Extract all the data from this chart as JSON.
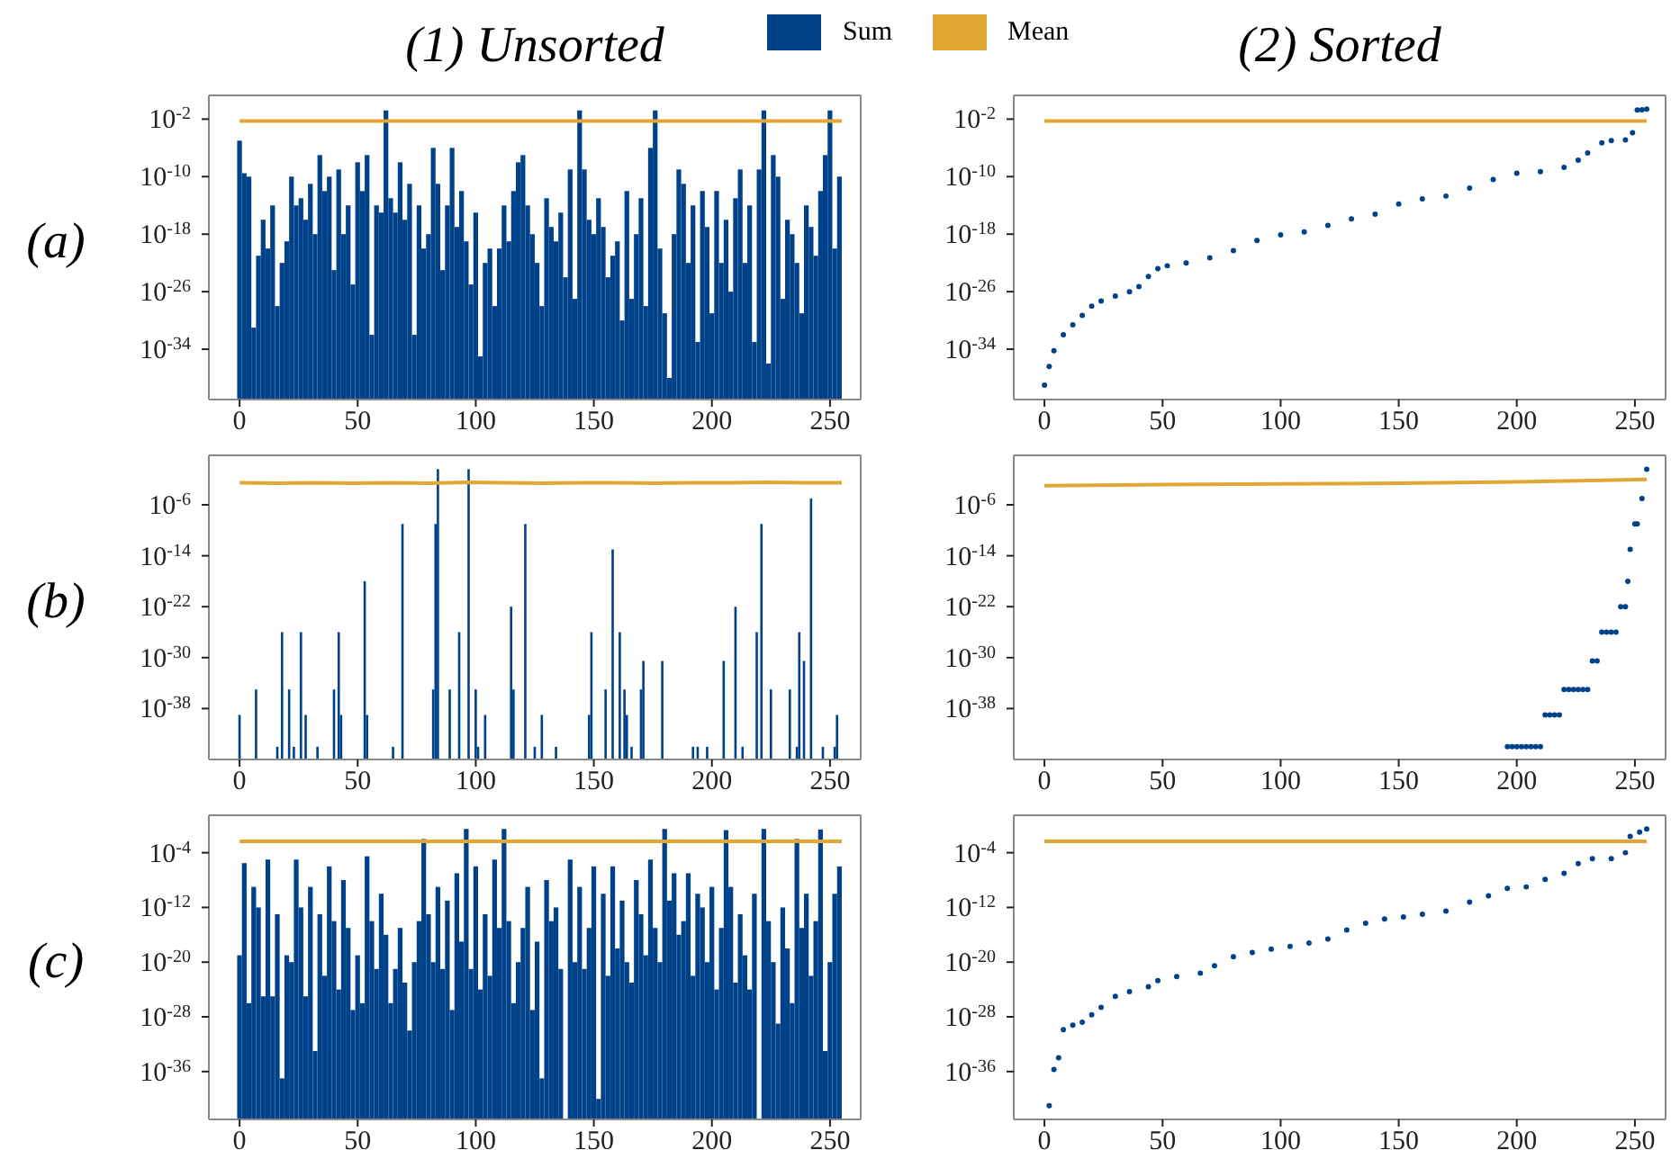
{
  "chart_data": [
    {
      "type": "bar",
      "title": "(1) Unsorted",
      "ylabel": "(a)",
      "legend": "top",
      "log": "y",
      "xlim": [
        -13,
        263
      ],
      "xticks": [
        0,
        50,
        100,
        150,
        200,
        250
      ],
      "ylim": [
        1e-41,
        20
      ],
      "yticks": [
        {
          "value": 0.01,
          "label": "10$^{-2}$"
        },
        {
          "value": 1e-10,
          "label": "10$^{-10}$"
        },
        {
          "value": 1e-18,
          "label": "10$^{-18}$"
        },
        {
          "value": 1e-26,
          "label": "10$^{-26}$"
        },
        {
          "value": 1e-34,
          "label": "10$^{-34}$"
        }
      ],
      "x": [
        0,
        2,
        4,
        6,
        8,
        10,
        12,
        14,
        16,
        18,
        20,
        22,
        24,
        26,
        28,
        30,
        32,
        34,
        36,
        38,
        40,
        42,
        44,
        46,
        48,
        50,
        52,
        54,
        56,
        58,
        60,
        62,
        64,
        66,
        68,
        70,
        72,
        74,
        76,
        78,
        80,
        82,
        84,
        86,
        88,
        90,
        92,
        94,
        96,
        98,
        100,
        102,
        104,
        106,
        108,
        110,
        112,
        114,
        116,
        118,
        120,
        122,
        124,
        126,
        128,
        130,
        132,
        134,
        136,
        138,
        140,
        142,
        144,
        146,
        148,
        150,
        152,
        154,
        156,
        158,
        160,
        162,
        164,
        166,
        168,
        170,
        172,
        174,
        176,
        178,
        180,
        182,
        184,
        186,
        188,
        190,
        192,
        194,
        196,
        198,
        200,
        202,
        204,
        206,
        208,
        210,
        212,
        214,
        216,
        218,
        220,
        222,
        224,
        226,
        228,
        230,
        232,
        234,
        236,
        238,
        240,
        242,
        244,
        246,
        248,
        250,
        252,
        254
      ],
      "series": [
        {
          "name": "Sum",
          "color": "#00428a",
          "values": [
            1e-05,
            3e-10,
            1e-10,
            1e-31,
            1e-21,
            1e-16,
            1e-20,
            1e-14,
            1e-28,
            1e-22,
            1e-19,
            1e-10,
            1e-14,
            1e-13,
            1e-16,
            1e-11,
            1e-18,
            1e-07,
            1e-12,
            1e-10,
            1e-23,
            1e-09,
            1e-18,
            1e-14,
            1e-25,
            1e-08,
            1e-12,
            1e-07,
            1e-32,
            1e-14,
            1e-15,
            0.16,
            1e-13,
            1e-15,
            1e-08,
            1e-16,
            1e-11,
            1e-32,
            1e-14,
            1e-20,
            1e-18,
            1e-06,
            1e-11,
            1e-23,
            1e-14,
            1e-06,
            1e-17,
            1e-12,
            1e-19,
            1e-25,
            1e-15,
            1e-35,
            1e-22,
            1e-20,
            1e-28,
            1e-20,
            1e-14,
            1e-19,
            1e-12,
            1e-08,
            1e-07,
            1e-14,
            1e-18,
            1e-22,
            1e-28,
            1e-13,
            1e-17,
            1e-19,
            1e-15,
            1e-24,
            1e-09,
            1e-27,
            0.16,
            1e-09,
            1e-16,
            1e-18,
            1e-13,
            1e-17,
            1e-24,
            1e-21,
            1e-19,
            1e-30,
            1e-12,
            1e-27,
            1e-18,
            1e-13,
            1e-28,
            1e-06,
            0.16,
            1e-20,
            1e-29,
            1e-38,
            1e-18,
            1e-09,
            1e-11,
            1e-22,
            1e-14,
            1e-33,
            1e-12,
            1e-17,
            1e-29,
            1e-12,
            1e-22,
            1e-16,
            1e-26,
            1e-13,
            1e-09,
            1e-22,
            1e-14,
            1e-33,
            1e-09,
            0.16,
            1e-36,
            1e-07,
            1e-10,
            1e-27,
            1e-16,
            1e-18,
            1e-22,
            1e-29,
            1e-14,
            1e-17,
            1e-21,
            1e-12,
            1e-07,
            0.16,
            1e-20,
            1e-10
          ]
        },
        {
          "name": "Mean",
          "type": "line",
          "color": "#e2a635",
          "x": [
            0,
            255
          ],
          "values": [
            0.0056,
            0.0056
          ]
        }
      ]
    },
    {
      "type": "scatter",
      "title": "(2) Sorted",
      "log": "y",
      "xlim": [
        -13,
        263
      ],
      "xticks": [
        0,
        50,
        100,
        150,
        200,
        250
      ],
      "ylim": [
        1e-41,
        20
      ],
      "yticks": [
        {
          "value": 0.01,
          "label": "10$^{-2}$"
        },
        {
          "value": 1e-10,
          "label": "10$^{-10}$"
        },
        {
          "value": 1e-18,
          "label": "10$^{-18}$"
        },
        {
          "value": 1e-26,
          "label": "10$^{-26}$"
        },
        {
          "value": 1e-34,
          "label": "10$^{-34}$"
        }
      ],
      "series": [
        {
          "marker": "circle",
          "color": "#00428a",
          "x": [
            0,
            2,
            4,
            8,
            12,
            16,
            20,
            24,
            30,
            36,
            40,
            44,
            48,
            52,
            60,
            70,
            80,
            90,
            100,
            110,
            120,
            130,
            140,
            150,
            160,
            170,
            180,
            190,
            200,
            210,
            220,
            226,
            230,
            236,
            240,
            246,
            249,
            251,
            253,
            255
          ],
          "values": [
            1e-39,
            4e-37,
            6e-35,
            1e-32,
            2.5e-31,
            5e-30,
            1e-28,
            5e-28,
            2.5e-27,
            1e-26,
            5e-26,
            1.3e-24,
            1.6e-23,
            4e-23,
            1e-22,
            5e-22,
            5e-21,
            1.3e-19,
            8e-19,
            2e-18,
            1.6e-17,
            1.3e-16,
            6e-16,
            1.6e-14,
            8e-14,
            2e-13,
            2.5e-12,
            4e-11,
            3e-10,
            5e-10,
            2e-09,
            2e-08,
            2e-07,
            5e-06,
            1e-05,
            1.3e-05,
            0.00013,
            0.18,
            0.2,
            0.25
          ]
        },
        {
          "type": "line",
          "color": "#e2a635",
          "x": [
            0,
            255
          ],
          "values": [
            0.0056,
            0.0056
          ]
        }
      ]
    },
    {
      "type": "bar",
      "ylabel": "(b)",
      "log": "y",
      "xlim": [
        -13,
        263
      ],
      "xticks": [
        0,
        50,
        100,
        150,
        200,
        250
      ],
      "ylim": [
        1e-46,
        60
      ],
      "yticks": [
        {
          "value": 1e-06,
          "label": "10$^{-6}$"
        },
        {
          "value": 1e-14,
          "label": "10$^{-14}$"
        },
        {
          "value": 1e-22,
          "label": "10$^{-22}$"
        },
        {
          "value": 1e-30,
          "label": "10$^{-30}$"
        },
        {
          "value": 1e-38,
          "label": "10$^{-38}$"
        }
      ],
      "series": [
        {
          "color": "#00428a",
          "x": [
            0,
            7,
            16,
            18,
            21,
            23,
            26,
            28,
            33,
            40,
            42,
            43,
            53,
            54,
            65,
            69,
            82,
            83,
            84,
            89,
            93,
            97,
            100,
            101,
            104,
            115,
            116,
            121,
            125,
            128,
            134,
            148,
            149,
            155,
            158,
            161,
            163,
            164,
            166,
            170,
            171,
            179,
            192,
            194,
            198,
            205,
            210,
            213,
            219,
            221,
            225,
            233,
            236,
            237,
            239,
            242,
            247,
            252,
            253
          ],
          "values": [
            1e-39,
            1e-35,
            1e-44,
            1e-26,
            1e-35,
            1e-44,
            1e-26,
            1e-39,
            1e-44,
            1e-35,
            1e-26,
            1e-39,
            1e-18,
            1e-39,
            1e-44,
            1e-09,
            1e-35,
            1e-09,
            0.4,
            1e-35,
            1e-26,
            0.4,
            1e-35,
            1e-44,
            1e-39,
            1e-22,
            1e-35,
            1e-09,
            1e-44,
            1e-39,
            1e-44,
            1e-39,
            1e-26,
            1e-35,
            1e-13,
            1e-26,
            1e-35,
            1e-39,
            1e-44,
            1e-35,
            3e-31,
            3e-31,
            1e-44,
            1e-44,
            1e-44,
            3e-31,
            1e-22,
            1e-44,
            1e-26,
            1e-09,
            1e-35,
            1e-35,
            1e-44,
            1e-26,
            3e-31,
            1e-05,
            1e-44,
            1e-44,
            1e-39
          ]
        },
        {
          "type": "line",
          "color": "#e2a635",
          "x": [
            0,
            16,
            32,
            48,
            64,
            80,
            96,
            112,
            128,
            144,
            160,
            176,
            192,
            208,
            224,
            240,
            255
          ],
          "values": [
            0.003,
            0.0025,
            0.003,
            0.0025,
            0.003,
            0.0025,
            0.0035,
            0.003,
            0.0025,
            0.003,
            0.003,
            0.0025,
            0.003,
            0.003,
            0.0035,
            0.003,
            0.003
          ]
        }
      ]
    },
    {
      "type": "scatter",
      "log": "y",
      "xlim": [
        -13,
        263
      ],
      "xticks": [
        0,
        50,
        100,
        150,
        200,
        250
      ],
      "ylim": [
        1e-46,
        60
      ],
      "yticks": [
        {
          "value": 1e-06,
          "label": "10$^{-6}$"
        },
        {
          "value": 1e-14,
          "label": "10$^{-14}$"
        },
        {
          "value": 1e-22,
          "label": "10$^{-22}$"
        },
        {
          "value": 1e-30,
          "label": "10$^{-30}$"
        },
        {
          "value": 1e-38,
          "label": "10$^{-38}$"
        }
      ],
      "series": [
        {
          "marker": "circle",
          "color": "#00428a",
          "x": [
            196,
            198,
            200,
            202,
            204,
            206,
            208,
            210,
            212,
            214,
            216,
            218,
            220,
            222,
            224,
            226,
            228,
            230,
            232,
            234,
            236,
            238,
            240,
            242,
            244,
            246,
            247,
            248,
            250,
            251,
            253,
            255
          ],
          "values": [
            1e-44,
            1e-44,
            1e-44,
            1e-44,
            1e-44,
            1e-44,
            1e-44,
            1e-44,
            1e-39,
            1e-39,
            1e-39,
            1e-39,
            1e-35,
            1e-35,
            1e-35,
            1e-35,
            1e-35,
            1e-35,
            3e-31,
            3e-31,
            1e-26,
            1e-26,
            1e-26,
            1e-26,
            1e-22,
            1e-22,
            1e-18,
            1e-13,
            1e-09,
            1e-09,
            1e-05,
            0.4
          ]
        },
        {
          "type": "line",
          "color": "#e2a635",
          "x": [
            0,
            50,
            100,
            150,
            200,
            255
          ],
          "values": [
            0.001,
            0.0015,
            0.002,
            0.0025,
            0.004,
            0.01
          ]
        }
      ]
    },
    {
      "type": "bar",
      "ylabel": "(c)",
      "log": "y",
      "xlim": [
        -13,
        263
      ],
      "xticks": [
        0,
        50,
        100,
        150,
        200,
        250
      ],
      "ylim": [
        1e-43,
        30
      ],
      "yticks": [
        {
          "value": 0.0001,
          "label": "10$^{-4}$"
        },
        {
          "value": 1e-12,
          "label": "10$^{-12}$"
        },
        {
          "value": 1e-20,
          "label": "10$^{-20}$"
        },
        {
          "value": 1e-28,
          "label": "10$^{-28}$"
        },
        {
          "value": 1e-36,
          "label": "10$^{-36}$"
        }
      ],
      "x": [
        0,
        2,
        4,
        6,
        8,
        10,
        12,
        14,
        16,
        18,
        20,
        22,
        24,
        26,
        28,
        30,
        32,
        34,
        36,
        38,
        40,
        42,
        44,
        46,
        48,
        50,
        52,
        54,
        56,
        58,
        60,
        62,
        64,
        66,
        68,
        70,
        72,
        74,
        76,
        78,
        80,
        82,
        84,
        86,
        88,
        90,
        92,
        94,
        96,
        98,
        100,
        102,
        104,
        106,
        108,
        110,
        112,
        114,
        116,
        118,
        120,
        122,
        124,
        126,
        128,
        130,
        132,
        134,
        136,
        138,
        140,
        142,
        144,
        146,
        148,
        150,
        152,
        154,
        156,
        158,
        160,
        162,
        164,
        166,
        168,
        170,
        172,
        174,
        176,
        178,
        180,
        182,
        184,
        186,
        188,
        190,
        192,
        194,
        196,
        198,
        200,
        202,
        204,
        206,
        208,
        210,
        212,
        214,
        216,
        218,
        220,
        222,
        224,
        226,
        228,
        230,
        232,
        234,
        236,
        238,
        240,
        242,
        244,
        246,
        248,
        250,
        252,
        254
      ],
      "series": [
        {
          "color": "#00428a",
          "values": [
            1e-19,
            3e-06,
            1e-26,
            1e-09,
            1e-12,
            1e-25,
            1e-05,
            1e-25,
            1e-13,
            1e-37,
            1e-19,
            1e-20,
            1e-05,
            1e-12,
            1e-25,
            1e-09,
            1e-33,
            1e-13,
            1e-22,
            1e-06,
            1e-14,
            1e-24,
            1e-08,
            1e-15,
            1e-27,
            1e-19,
            1e-26,
            3e-05,
            1e-14,
            1e-21,
            1e-10,
            1e-16,
            1e-26,
            1e-21,
            1e-15,
            1e-23,
            1e-30,
            1e-20,
            1e-14,
            0.01,
            1e-13,
            1e-20,
            1e-09,
            1e-21,
            1e-11,
            1e-27,
            1e-07,
            1e-17,
            0.3,
            1e-21,
            1e-06,
            1e-24,
            1e-13,
            1e-22,
            1e-05,
            1e-15,
            0.3,
            1e-14,
            1e-26,
            1e-20,
            1e-15,
            1e-09,
            1e-27,
            1e-17,
            1e-37,
            1e-08,
            1e-14,
            1e-12,
            1e-21,
            null,
            1e-05,
            1e-20,
            1e-09,
            1e-21,
            1e-15,
            1e-06,
            1e-40,
            1e-10,
            1e-22,
            1e-06,
            1e-18,
            1e-11,
            1e-20,
            1e-23,
            1e-08,
            1e-13,
            1e-19,
            1e-05,
            1e-15,
            1e-20,
            0.3,
            1e-11,
            1e-07,
            1e-16,
            1e-14,
            1e-07,
            1e-22,
            1e-10,
            1e-12,
            1e-20,
            1e-09,
            1e-24,
            1e-15,
            0.2,
            1e-09,
            1e-23,
            1e-13,
            1e-19,
            1e-24,
            1e-10,
            null,
            0.3,
            1e-14,
            1e-20,
            1e-29,
            1e-12,
            1e-18,
            1e-26,
            0.01,
            1e-15,
            1e-10,
            1e-22,
            1e-14,
            0.25,
            1e-33,
            1e-20,
            1e-10,
            1e-06
          ]
        },
        {
          "type": "line",
          "color": "#e2a635",
          "x": [
            0,
            255
          ],
          "values": [
            0.0045,
            0.0045
          ]
        }
      ]
    },
    {
      "type": "scatter",
      "log": "y",
      "xlim": [
        -13,
        263
      ],
      "xticks": [
        0,
        50,
        100,
        150,
        200,
        250
      ],
      "ylim": [
        1e-43,
        30
      ],
      "yticks": [
        {
          "value": 0.0001,
          "label": "10$^{-4}$"
        },
        {
          "value": 1e-12,
          "label": "10$^{-12}$"
        },
        {
          "value": 1e-20,
          "label": "10$^{-20}$"
        },
        {
          "value": 1e-28,
          "label": "10$^{-28}$"
        },
        {
          "value": 1e-36,
          "label": "10$^{-36}$"
        }
      ],
      "series": [
        {
          "marker": "circle",
          "color": "#00428a",
          "x": [
            2,
            4,
            6,
            8,
            12,
            16,
            20,
            24,
            30,
            36,
            44,
            48,
            56,
            66,
            72,
            80,
            88,
            96,
            104,
            112,
            120,
            128,
            136,
            144,
            152,
            160,
            170,
            180,
            188,
            196,
            204,
            212,
            220,
            226,
            232,
            240,
            246,
            248,
            252,
            255
          ],
          "values": [
            1e-41,
            2e-36,
            1e-34,
            1.3e-30,
            6e-30,
            1.6e-29,
            2e-28,
            2.5e-27,
            1e-25,
            5e-25,
            2.5e-24,
            2e-23,
            8e-23,
            2.5e-22,
            3e-21,
            6e-20,
            2.5e-19,
            8e-19,
            2e-18,
            6e-18,
            2.5e-17,
            5e-16,
            5e-15,
            2e-14,
            4e-14,
            1e-13,
            3e-13,
            6e-12,
            5e-11,
            6e-10,
            1e-09,
            1.3e-08,
            1e-07,
            2.5e-06,
            1.3e-05,
            1.3e-05,
            0.0001,
            0.025,
            0.1,
            0.3
          ]
        },
        {
          "type": "line",
          "color": "#e2a635",
          "x": [
            0,
            255
          ],
          "values": [
            0.0045,
            0.0045
          ]
        }
      ]
    }
  ]
}
